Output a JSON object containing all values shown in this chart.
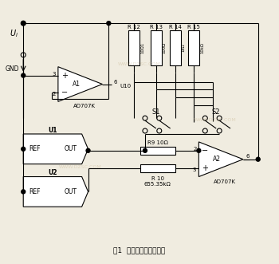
{
  "title": "图1  可编程电阻的原理图",
  "bg_color": "#f0ece0",
  "resistor_labels": [
    "R 12",
    "R 13",
    "R 14",
    "R 15"
  ],
  "resistor_vals": [
    "10Ω1",
    "100Ω",
    "1kΩ",
    "10kΩ"
  ],
  "r9_label": "R9 10Ω",
  "r10_label": "R 10",
  "r10_val": "655.35kΩ",
  "s1_label": "S1",
  "s2_label": "S2",
  "a1_label": "A1",
  "a1_chip": "AD707K",
  "a2_label": "A2",
  "a2_chip": "AD707K",
  "u1_label": "U1",
  "u2_label": "U2",
  "u10_label": "U10",
  "ui_label": "U_i",
  "gnd_label": "GND"
}
